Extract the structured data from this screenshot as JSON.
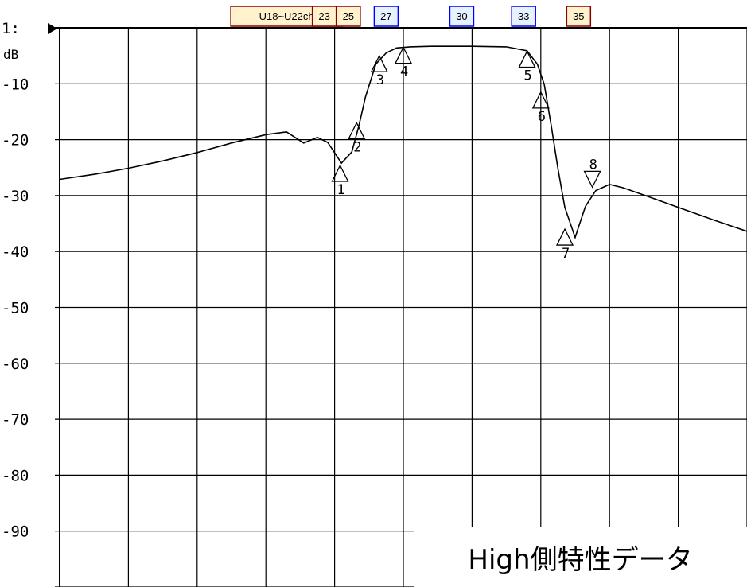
{
  "chart_data": {
    "type": "line",
    "ylabel_ref": "1:",
    "ylabel_unit": "dB",
    "ylim": [
      -100,
      0
    ],
    "y_ticks": [
      -10,
      -20,
      -30,
      -40,
      -50,
      -60,
      -70,
      -80,
      -90
    ],
    "y_tick_labels": [
      "-10",
      "-20",
      "-30",
      "-40",
      "-50",
      "-60",
      "-70",
      "-80",
      "-90"
    ],
    "x_grid_divisions": 10,
    "grid": true,
    "channel_labels": [
      {
        "text": "U18~U22ch",
        "type": "brown",
        "x": 3.3
      },
      {
        "text": "23",
        "type": "brown",
        "x": 3.85
      },
      {
        "text": "25",
        "type": "brown",
        "x": 4.2
      },
      {
        "text": "27",
        "type": "blue",
        "x": 4.75
      },
      {
        "text": "30",
        "type": "blue",
        "x": 5.85
      },
      {
        "text": "33",
        "type": "blue",
        "x": 6.75
      },
      {
        "text": "35",
        "type": "brown",
        "x": 7.55
      }
    ],
    "series": [
      {
        "x": [
          0,
          0.5,
          1,
          1.5,
          2,
          2.5,
          3,
          3.3,
          3.55,
          3.75,
          3.9,
          4.1,
          4.25,
          4.35,
          4.45,
          4.6,
          4.75,
          4.9,
          5.1,
          5.4,
          6,
          6.5,
          6.8,
          6.95,
          7.05,
          7.15,
          7.25,
          7.35,
          7.5,
          7.55,
          7.65,
          7.8,
          8,
          8.2,
          8.5,
          9,
          9.5,
          10
        ],
        "y": [
          -27.1,
          -26.2,
          -25.1,
          -23.8,
          -22.3,
          -20.6,
          -19.1,
          -18.6,
          -20.6,
          -19.6,
          -20.5,
          -24.2,
          -22.2,
          -17.7,
          -12.3,
          -6.5,
          -4.5,
          -3.6,
          -3.4,
          -3.3,
          -3.3,
          -3.4,
          -4.1,
          -6.5,
          -10.1,
          -17.4,
          -25.2,
          -32.1,
          -37.5,
          -35.6,
          -31.9,
          -29.1,
          -28.0,
          -28.6,
          -29.9,
          -32.1,
          -34.3,
          -36.4
        ]
      }
    ],
    "markers": [
      {
        "id": "1",
        "x": 4.08,
        "y": -24.6,
        "dir": "up"
      },
      {
        "id": "2",
        "x": 4.32,
        "y": -17.0,
        "dir": "up"
      },
      {
        "id": "3",
        "x": 4.65,
        "y": -5.0,
        "dir": "up"
      },
      {
        "id": "4",
        "x": 5.0,
        "y": -3.5,
        "dir": "up"
      },
      {
        "id": "5",
        "x": 6.8,
        "y": -4.2,
        "dir": "up"
      },
      {
        "id": "6",
        "x": 7.0,
        "y": -11.5,
        "dir": "up"
      },
      {
        "id": "7",
        "x": 7.35,
        "y": -36.0,
        "dir": "up"
      },
      {
        "id": "8",
        "x": 7.75,
        "y": -28.5,
        "dir": "down"
      }
    ]
  },
  "caption": "High側特性データ",
  "colors": {
    "brown_border": "#8b0000",
    "brown_fill": "#fff2cc",
    "blue_border": "#0000ff",
    "blue_fill": "#e6f2ff"
  }
}
